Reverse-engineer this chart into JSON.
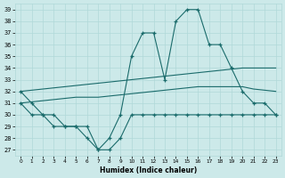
{
  "xlabel": "Humidex (Indice chaleur)",
  "x": [
    0,
    1,
    2,
    3,
    4,
    5,
    6,
    7,
    8,
    9,
    10,
    11,
    12,
    13,
    14,
    15,
    16,
    17,
    18,
    19,
    20,
    21,
    22,
    23
  ],
  "line_upper": [
    32,
    31,
    30,
    30,
    29,
    29,
    29,
    27,
    28,
    30,
    35,
    37,
    37,
    33,
    38,
    39,
    39,
    36,
    36,
    34,
    32,
    31,
    31,
    30
  ],
  "line_trend_max": [
    32,
    32.1,
    32.2,
    32.3,
    32.4,
    32.5,
    32.6,
    32.7,
    32.8,
    32.9,
    33.0,
    33.1,
    33.2,
    33.3,
    33.4,
    33.5,
    33.6,
    33.7,
    33.8,
    33.9,
    34.0,
    34.0,
    34.0,
    34.0
  ],
  "line_trend_avg": [
    31.0,
    31.1,
    31.2,
    31.3,
    31.4,
    31.5,
    31.5,
    31.5,
    31.6,
    31.7,
    31.8,
    31.9,
    32.0,
    32.1,
    32.2,
    32.3,
    32.4,
    32.4,
    32.4,
    32.4,
    32.4,
    32.2,
    32.1,
    32.0
  ],
  "line_lower": [
    31,
    30,
    30,
    29,
    29,
    29,
    28,
    27,
    27,
    28,
    30,
    30,
    30,
    30,
    30,
    30,
    30,
    30,
    30,
    30,
    30,
    30,
    30,
    30
  ],
  "bg_color": "#cce9e9",
  "grid_color": "#b0d8d8",
  "line_color": "#1a6b6b",
  "ylim_min": 27,
  "ylim_max": 39,
  "yticks": [
    27,
    28,
    29,
    30,
    31,
    32,
    33,
    34,
    35,
    36,
    37,
    38,
    39
  ],
  "xtick_labels": [
    "0",
    "1",
    "2",
    "3",
    "4",
    "5",
    "6",
    "7",
    "8",
    "9",
    "10",
    "11",
    "12",
    "13",
    "14",
    "15",
    "16",
    "17",
    "18",
    "19",
    "20",
    "21",
    "22",
    "23"
  ]
}
